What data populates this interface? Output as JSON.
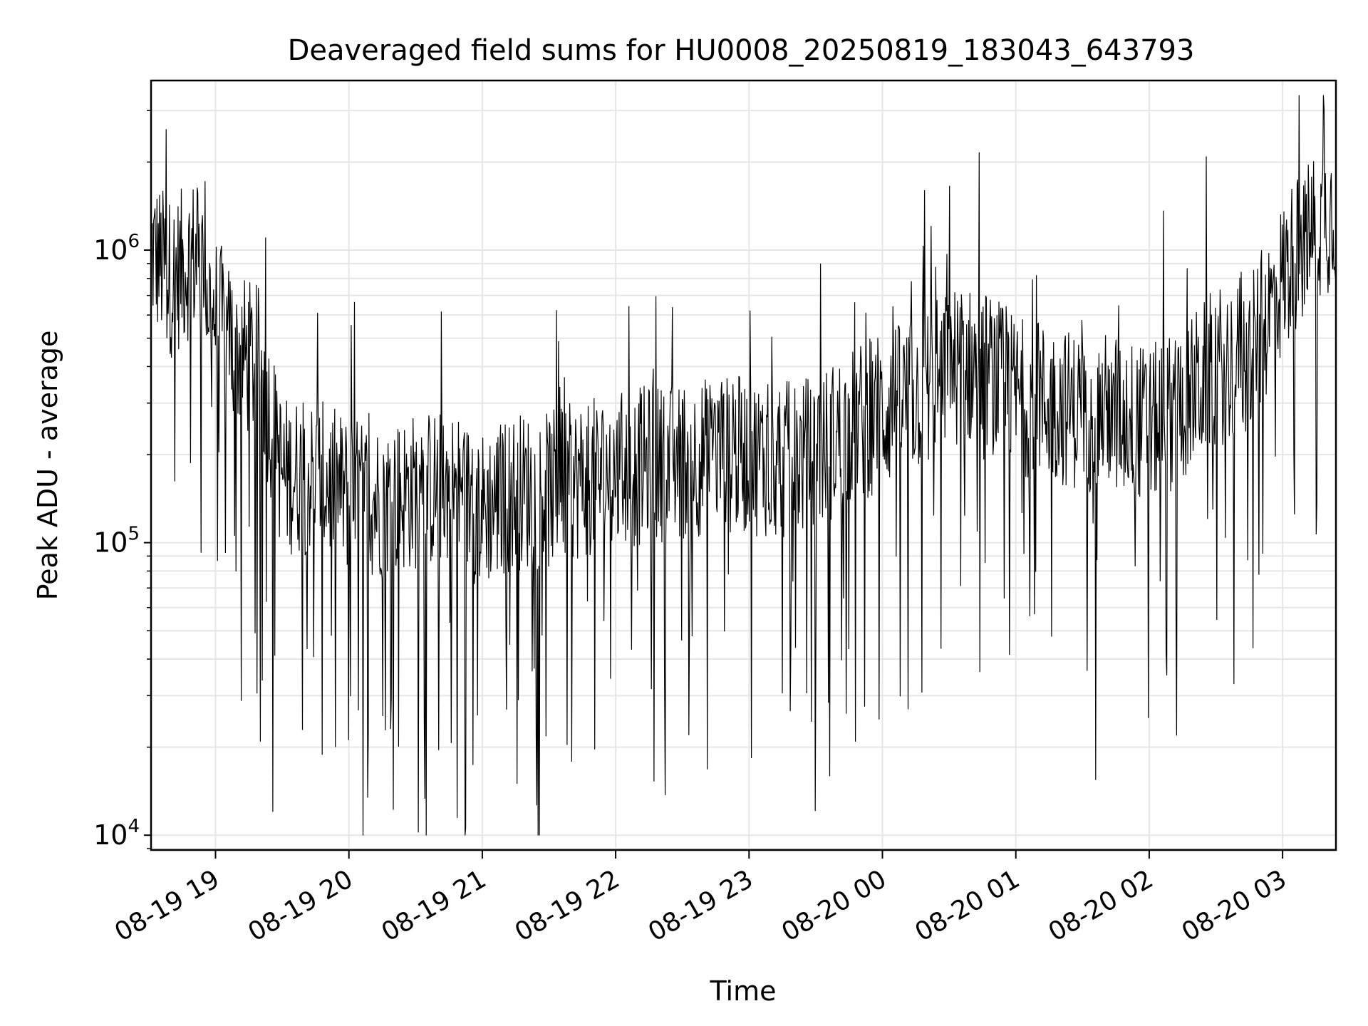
{
  "chart_data": {
    "type": "line",
    "title": "Deaveraged field sums for HU0008_20250819_183043_643793",
    "xlabel": "Time",
    "ylabel": "Peak ADU - average",
    "x_ticks": [
      "08-19 19",
      "08-19 20",
      "08-19 21",
      "08-19 22",
      "08-19 23",
      "08-20 00",
      "08-20 01",
      "08-20 02",
      "08-20 03"
    ],
    "y_scale": "log",
    "y_ticks": [
      {
        "base": "10",
        "exp": "4",
        "value": 10000
      },
      {
        "base": "10",
        "exp": "5",
        "value": 100000
      },
      {
        "base": "10",
        "exp": "6",
        "value": 1000000
      }
    ],
    "xlim": [
      "2025-08-19 18:31",
      "2025-08-20 03:24"
    ],
    "ylim": [
      8900,
      3800000
    ],
    "grid": true,
    "line_color": "#000000",
    "series": [
      {
        "x": [
          "2025-08-19 18:31",
          "2025-08-19 18:40",
          "2025-08-19 18:50",
          "2025-08-19 19:00",
          "2025-08-19 19:10",
          "2025-08-19 19:20",
          "2025-08-19 19:30",
          "2025-08-19 19:40",
          "2025-08-19 19:50",
          "2025-08-19 20:00",
          "2025-08-19 20:15",
          "2025-08-19 20:30",
          "2025-08-19 20:45",
          "2025-08-19 21:00",
          "2025-08-19 21:15",
          "2025-08-19 21:30",
          "2025-08-19 21:45",
          "2025-08-19 22:00",
          "2025-08-19 22:15",
          "2025-08-19 22:30",
          "2025-08-19 22:45",
          "2025-08-19 23:00",
          "2025-08-19 23:15",
          "2025-08-19 23:30",
          "2025-08-19 23:45",
          "2025-08-20 00:00",
          "2025-08-20 00:15",
          "2025-08-20 00:30",
          "2025-08-20 00:45",
          "2025-08-20 01:00",
          "2025-08-20 01:15",
          "2025-08-20 01:30",
          "2025-08-20 01:45",
          "2025-08-20 02:00",
          "2025-08-20 02:15",
          "2025-08-20 02:30",
          "2025-08-20 02:45",
          "2025-08-20 03:00",
          "2025-08-20 03:10",
          "2025-08-20 03:24"
        ],
        "y": [
          1000000,
          800000,
          950000,
          600000,
          450000,
          400000,
          170000,
          170000,
          160000,
          145000,
          140000,
          150000,
          155000,
          130000,
          150000,
          150000,
          165000,
          175000,
          185000,
          190000,
          200000,
          200000,
          190000,
          200000,
          250000,
          280000,
          320000,
          400000,
          400000,
          320000,
          300000,
          280000,
          280000,
          250000,
          300000,
          400000,
          420000,
          800000,
          1100000,
          1400000
        ]
      }
    ]
  }
}
